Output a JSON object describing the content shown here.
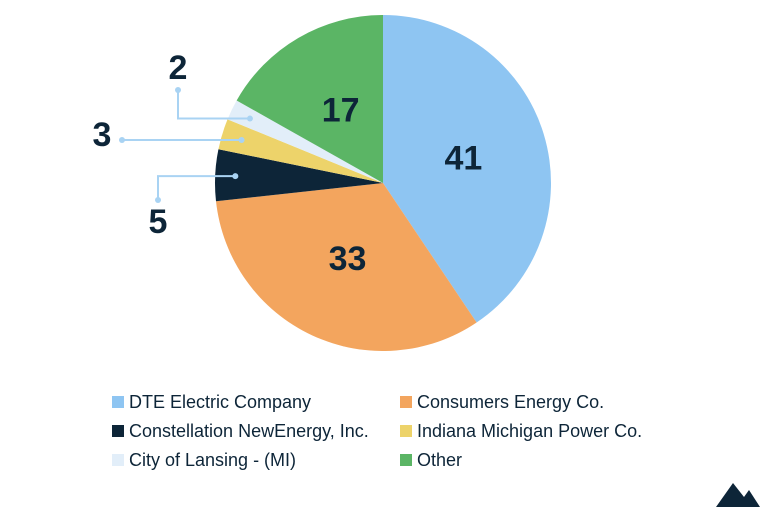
{
  "chart_data": {
    "type": "pie",
    "categories": [
      "DTE Electric Company",
      "Consumers Energy Co.",
      "Constellation NewEnergy, Inc.",
      "Indiana Michigan Power Co.",
      "City of Lansing - (MI)",
      "Other"
    ],
    "values": [
      41,
      33,
      5,
      3,
      2,
      17
    ],
    "colors": [
      "#8ec5f2",
      "#f3a55e",
      "#0d2538",
      "#edd36a",
      "#e2eef9",
      "#5bb565"
    ],
    "legend": "bottom"
  }
}
